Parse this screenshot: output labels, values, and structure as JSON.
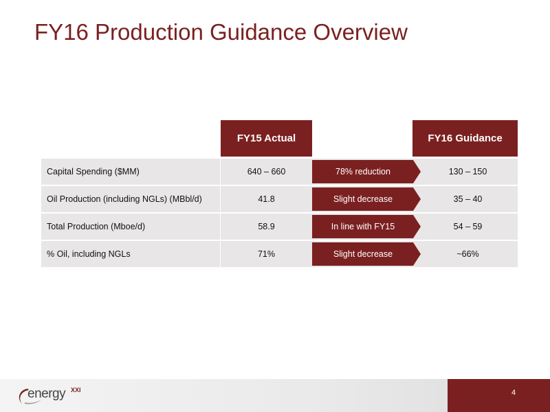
{
  "slide": {
    "title": "FY16 Production Guidance Overview",
    "page_number": "4"
  },
  "table": {
    "header_fy15": "FY15 Actual",
    "header_fy16": "FY16 Guidance",
    "rows": [
      {
        "label": "Capital Spending ($MM)",
        "fy15": "640 – 660",
        "change": "78% reduction",
        "fy16": "130 – 150"
      },
      {
        "label": "Oil Production (including NGLs) (MBbl/d)",
        "fy15": "41.8",
        "change": "Slight decrease",
        "fy16": "35 – 40"
      },
      {
        "label": "Total Production (Mboe/d)",
        "fy15": "58.9",
        "change": "In line with FY15",
        "fy16": "54 – 59"
      },
      {
        "label": "% Oil, including NGLs",
        "fy15": "71%",
        "change": "Slight decrease",
        "fy16": "~66%"
      }
    ]
  },
  "logo": {
    "name": "energy",
    "superscript": "XXI"
  },
  "colors": {
    "accent": "#7b2020",
    "row_background": "#e8e6e6"
  }
}
